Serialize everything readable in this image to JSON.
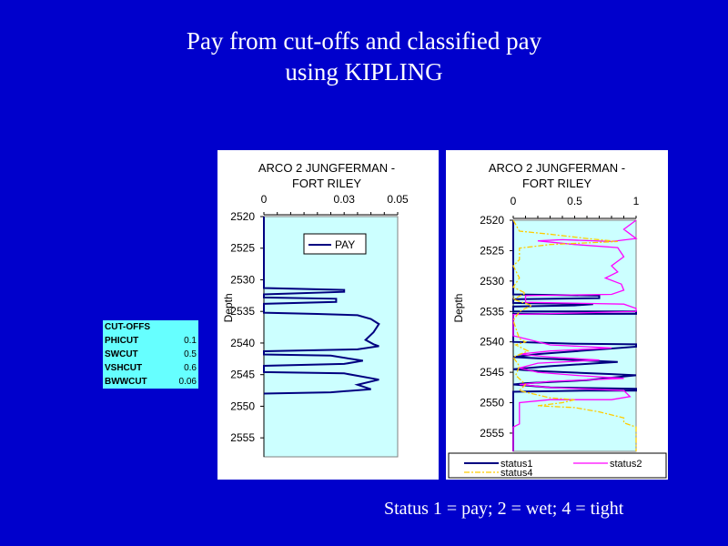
{
  "slide": {
    "title_line1": "Pay from cut-offs and classified pay",
    "title_line2": "using KIPLING",
    "footer": "Status 1 = pay; 2 = wet; 4 = tight"
  },
  "cutoffs": {
    "header": "CUT-OFFS",
    "rows": [
      {
        "name": "PHICUT",
        "value": "0.1"
      },
      {
        "name": "SWCUT",
        "value": "0.5"
      },
      {
        "name": "VSHCUT",
        "value": "0.6"
      },
      {
        "name": "BWWCUT",
        "value": "0.06"
      }
    ]
  },
  "colors": {
    "background": "#0000cc",
    "plot_area": "#ccffff",
    "status1": "#000080",
    "status2": "#ff00ff",
    "status4": "#ffcc00"
  },
  "chart_data": [
    {
      "type": "line",
      "title_line1": "ARCO  2  JUNGFERMAN -",
      "title_line2": "FORT  RILEY",
      "xlabel": "",
      "ylabel": "Depth",
      "xlim": [
        0,
        0.05
      ],
      "xticks": [
        "0",
        "0.03",
        "0.05"
      ],
      "ylim": [
        2520,
        2558
      ],
      "yticks": [
        "2520",
        "2525",
        "2530",
        "2535",
        "2540",
        "2545",
        "2550",
        "2555"
      ],
      "y_inverted": true,
      "legend": "top-center",
      "series": [
        {
          "name": "PAY",
          "color": "#000080",
          "points": [
            [
              0,
              2520
            ],
            [
              0,
              2531.3
            ],
            [
              0.03,
              2531.6
            ],
            [
              0.03,
              2531.9
            ],
            [
              0,
              2532.3
            ],
            [
              0,
              2532.8
            ],
            [
              0.027,
              2533
            ],
            [
              0.027,
              2533.5
            ],
            [
              0,
              2533.8
            ],
            [
              0,
              2535.2
            ],
            [
              0.02,
              2535.4
            ],
            [
              0.035,
              2535.6
            ],
            [
              0.04,
              2536.2
            ],
            [
              0.043,
              2537
            ],
            [
              0.041,
              2538.3
            ],
            [
              0.038,
              2539.5
            ],
            [
              0.041,
              2540.2
            ],
            [
              0.043,
              2540.5
            ],
            [
              0.035,
              2541
            ],
            [
              0,
              2541.3
            ],
            [
              0,
              2541.8
            ],
            [
              0.025,
              2542
            ],
            [
              0.037,
              2542.8
            ],
            [
              0.03,
              2543.3
            ],
            [
              0,
              2543.6
            ],
            [
              0,
              2544.6
            ],
            [
              0.03,
              2544.8
            ],
            [
              0.043,
              2545.8
            ],
            [
              0.035,
              2546.6
            ],
            [
              0.04,
              2547.3
            ],
            [
              0.025,
              2547.8
            ],
            [
              0,
              2548
            ]
          ]
        }
      ]
    },
    {
      "type": "line",
      "title_line1": "ARCO  2  JUNGFERMAN -",
      "title_line2": "FORT  RILEY",
      "xlabel": "",
      "ylabel": "Depth",
      "xlim": [
        0,
        1
      ],
      "xticks": [
        "0",
        "0.5",
        "1"
      ],
      "ylim": [
        2520,
        2558
      ],
      "yticks": [
        "2520",
        "2525",
        "2530",
        "2535",
        "2540",
        "2545",
        "2550",
        "2555"
      ],
      "y_inverted": true,
      "legend": "bottom",
      "series": [
        {
          "name": "status1",
          "color": "#000080",
          "dash": "",
          "points": [
            [
              0,
              2520
            ],
            [
              0,
              2532.2
            ],
            [
              0.7,
              2532.4
            ],
            [
              0.7,
              2532.8
            ],
            [
              0,
              2533
            ],
            [
              0,
              2533.6
            ],
            [
              0.65,
              2533.8
            ],
            [
              0.5,
              2534
            ],
            [
              0,
              2534.2
            ],
            [
              0,
              2535
            ],
            [
              1,
              2535
            ],
            [
              1,
              2535.4
            ],
            [
              0,
              2535.4
            ],
            [
              0,
              2540
            ],
            [
              0.5,
              2540.3
            ],
            [
              1,
              2540.4
            ],
            [
              1,
              2540.8
            ],
            [
              0.2,
              2542
            ],
            [
              0,
              2542.5
            ],
            [
              0.2,
              2542.7
            ],
            [
              0.85,
              2543.3
            ],
            [
              0.3,
              2544
            ],
            [
              0,
              2544.5
            ],
            [
              0.2,
              2544.8
            ],
            [
              0.8,
              2545.3
            ],
            [
              1,
              2545.5
            ],
            [
              0.6,
              2546.3
            ],
            [
              0.1,
              2546.8
            ],
            [
              0,
              2547
            ],
            [
              0.3,
              2547.5
            ],
            [
              1,
              2547.7
            ],
            [
              1,
              2548
            ],
            [
              0.6,
              2548
            ],
            [
              0,
              2548.2
            ],
            [
              0,
              2558
            ]
          ]
        },
        {
          "name": "status2",
          "color": "#ff00ff",
          "dash": "",
          "points": [
            [
              1,
              2520
            ],
            [
              0.9,
              2521.5
            ],
            [
              1,
              2523
            ],
            [
              0.8,
              2523.5
            ],
            [
              0.4,
              2523.2
            ],
            [
              0.2,
              2523.4
            ],
            [
              0.5,
              2524
            ],
            [
              0.85,
              2524.5
            ],
            [
              0.9,
              2526
            ],
            [
              0.8,
              2527.5
            ],
            [
              0.85,
              2528.5
            ],
            [
              0.75,
              2529.5
            ],
            [
              0.88,
              2530.5
            ],
            [
              0.9,
              2531.5
            ],
            [
              0.8,
              2532.2
            ],
            [
              0.1,
              2532.4
            ],
            [
              0.1,
              2533.5
            ],
            [
              0.9,
              2533.8
            ],
            [
              1,
              2534.5
            ],
            [
              1,
              2535
            ],
            [
              0,
              2535.5
            ],
            [
              0,
              2539
            ],
            [
              0.1,
              2539.5
            ],
            [
              0.3,
              2540.5
            ],
            [
              0.8,
              2541
            ],
            [
              0.3,
              2541.5
            ],
            [
              0.05,
              2542
            ],
            [
              0.3,
              2542.5
            ],
            [
              0.7,
              2543
            ],
            [
              0.2,
              2543.5
            ],
            [
              0.05,
              2544.3
            ],
            [
              0.2,
              2545
            ],
            [
              0.5,
              2545.5
            ],
            [
              0.9,
              2546
            ],
            [
              0.3,
              2546.5
            ],
            [
              0.05,
              2547
            ],
            [
              0.3,
              2547.5
            ],
            [
              0.9,
              2548
            ],
            [
              0.95,
              2549
            ],
            [
              0.8,
              2549.5
            ],
            [
              0.3,
              2549.5
            ],
            [
              0.05,
              2550
            ],
            [
              0.05,
              2552.5
            ],
            [
              0.05,
              2553.5
            ],
            [
              0,
              2554
            ],
            [
              0,
              2558
            ]
          ]
        },
        {
          "name": "status4",
          "color": "#ffcc00",
          "dash": "6,2,2,2",
          "points": [
            [
              0,
              2520
            ],
            [
              0.05,
              2521.8
            ],
            [
              0.3,
              2522.3
            ],
            [
              0.6,
              2523
            ],
            [
              0.85,
              2523.5
            ],
            [
              0.3,
              2524
            ],
            [
              0.05,
              2524.6
            ],
            [
              0.05,
              2526.5
            ],
            [
              0,
              2527.5
            ],
            [
              0.05,
              2529.5
            ],
            [
              0,
              2531
            ],
            [
              0.1,
              2532
            ],
            [
              0,
              2533
            ],
            [
              0.15,
              2534
            ],
            [
              0.05,
              2535
            ],
            [
              0,
              2536.5
            ],
            [
              0.05,
              2539.5
            ],
            [
              0.1,
              2540
            ],
            [
              0.02,
              2540.5
            ],
            [
              0.12,
              2541.5
            ],
            [
              0,
              2542.5
            ],
            [
              0.05,
              2544
            ],
            [
              0.02,
              2545.5
            ],
            [
              0.1,
              2547
            ],
            [
              0.05,
              2548
            ],
            [
              0.15,
              2548.5
            ],
            [
              0.3,
              2549.2
            ],
            [
              0.5,
              2549.5
            ],
            [
              0.4,
              2550
            ],
            [
              0.2,
              2550.5
            ],
            [
              0.5,
              2550.8
            ],
            [
              0.7,
              2551.5
            ],
            [
              0.9,
              2552.5
            ],
            [
              0.9,
              2553.3
            ],
            [
              1,
              2554
            ],
            [
              1,
              2558
            ]
          ]
        }
      ]
    }
  ]
}
